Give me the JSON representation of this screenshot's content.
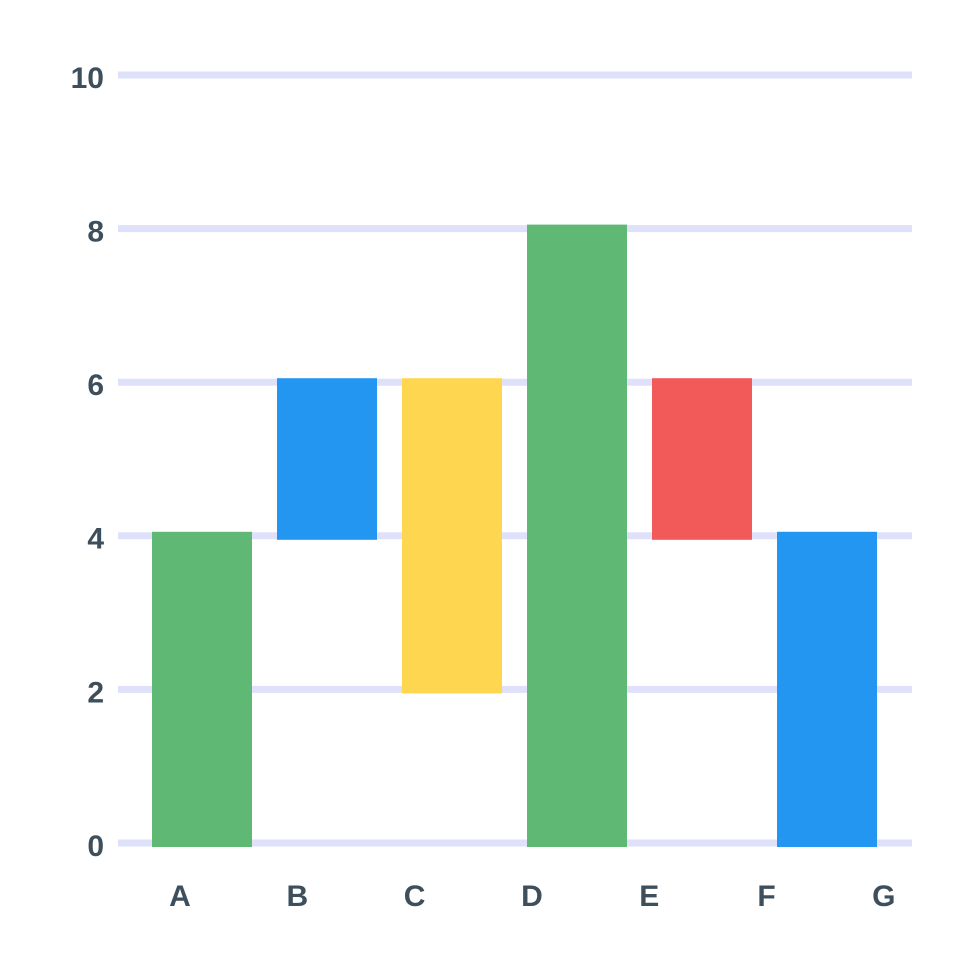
{
  "chart_data": {
    "type": "floating-bar",
    "categories": [
      "A",
      "B",
      "C",
      "D",
      "E",
      "F",
      "G"
    ],
    "low": [
      0,
      4,
      2,
      0,
      4,
      0,
      null
    ],
    "high": [
      4,
      6,
      6,
      8,
      6,
      4,
      null
    ],
    "colors": [
      "#5fb874",
      "#2396f1",
      "#fed650",
      "#5fb874",
      "#f25a5a",
      "#2396f1",
      null
    ],
    "ylim": [
      0,
      10
    ],
    "yticks": [
      0,
      2,
      4,
      6,
      8,
      10
    ],
    "grid": true
  }
}
